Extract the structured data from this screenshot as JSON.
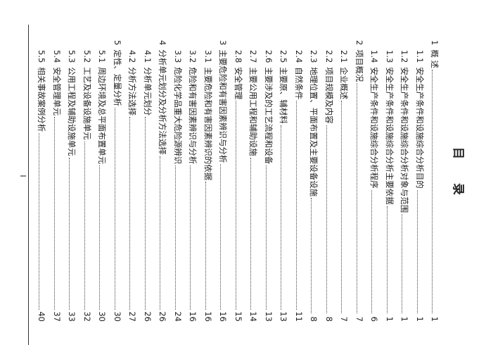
{
  "title": "目 录",
  "entries": [
    {
      "num": "1",
      "label": "概 述",
      "page": "1",
      "level": 1
    },
    {
      "num": "1.1",
      "label": "安全生产条件和设施综合分析目的",
      "page": "1",
      "level": 2
    },
    {
      "num": "1.2",
      "label": "安全生产条件和设施综合分析对象与范围",
      "page": "1",
      "level": 2
    },
    {
      "num": "1.3",
      "label": "安全生产条件和设施综合分析主要依据",
      "page": "1",
      "level": 2
    },
    {
      "num": "1.4",
      "label": "安全生产条件和设施综合分析程序",
      "page": "6",
      "level": 2
    },
    {
      "num": "2",
      "label": "项目概况",
      "page": "7",
      "level": 1
    },
    {
      "num": "2.1",
      "label": "企业概述",
      "page": "7",
      "level": 2
    },
    {
      "num": "2.2",
      "label": "项目规模及内容",
      "page": "8",
      "level": 2
    },
    {
      "num": "2.3",
      "label": "地理位置、平面布置及主要设备设施",
      "page": "8",
      "level": 2
    },
    {
      "num": "2.4",
      "label": "自然条件",
      "page": "11",
      "level": 2
    },
    {
      "num": "2.5",
      "label": "主要原、辅材料",
      "page": "13",
      "level": 2
    },
    {
      "num": "2.6",
      "label": "主要涉及的工艺流程和设备",
      "page": "13",
      "level": 2
    },
    {
      "num": "2.7",
      "label": "主要公用工程和辅助设施",
      "page": "14",
      "level": 2
    },
    {
      "num": "2.8",
      "label": "安全管理",
      "page": "15",
      "level": 2
    },
    {
      "num": "3",
      "label": "主要危险和有害因素辨识与分析",
      "page": "16",
      "level": 1
    },
    {
      "num": "3.1",
      "label": "主要危险和有害因素辨识的依据",
      "page": "16",
      "level": 2
    },
    {
      "num": "3.2",
      "label": "危险和有害因素辨识与分析",
      "page": "16",
      "level": 2
    },
    {
      "num": "3.3",
      "label": "危险化学品重大危险源辨识",
      "page": "24",
      "level": 2
    },
    {
      "num": "4",
      "label": "分析单元划分及分析方法选择",
      "page": "26",
      "level": 1
    },
    {
      "num": "4.1",
      "label": "分析单元划分",
      "page": "26",
      "level": 2
    },
    {
      "num": "4.2",
      "label": "分析方法选择",
      "page": "27",
      "level": 2
    },
    {
      "num": "5",
      "label": "定性、定量分析",
      "page": "30",
      "level": 1
    },
    {
      "num": "5.1",
      "label": "周边环境及总平面布置单元",
      "page": "30",
      "level": 2
    },
    {
      "num": "5.2",
      "label": "工艺及设备设施单元",
      "page": "32",
      "level": 2
    },
    {
      "num": "5.3",
      "label": "公用工程及辅助设施单元",
      "page": "33",
      "level": 2
    },
    {
      "num": "5.4",
      "label": "安全管理单元",
      "page": "37",
      "level": 2
    },
    {
      "num": "5.5",
      "label": "相关事故案例分析",
      "page": "40",
      "level": 2
    }
  ],
  "footer": {
    "page_number": "I"
  }
}
